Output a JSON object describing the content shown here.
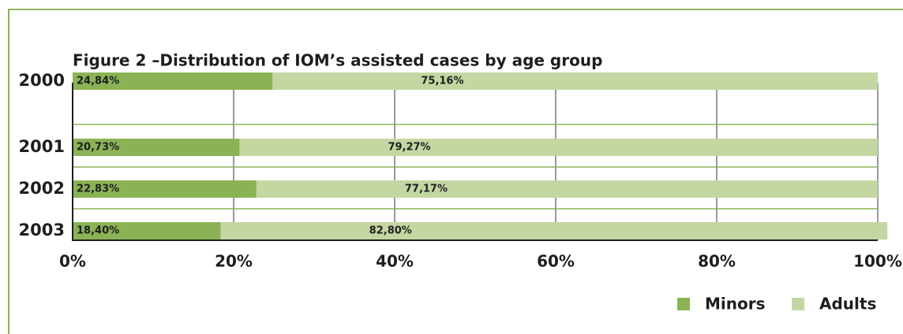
{
  "chart_data": {
    "type": "stacked_hbar",
    "title": "Figure 2 –Distribution of IOM’s assisted cases by age group",
    "categories": [
      "2000",
      "2001",
      "2002",
      "2003"
    ],
    "series": [
      {
        "name": "Minors",
        "color": "#8bb356",
        "values": [
          24.84,
          20.73,
          22.83,
          18.4
        ],
        "value_labels": [
          "24,84%",
          "20,73%",
          "22,83%",
          "18,40%"
        ]
      },
      {
        "name": "Adults",
        "color": "#c4d7a2",
        "values": [
          75.16,
          79.27,
          77.17,
          82.8
        ],
        "value_labels": [
          "75,16%",
          "79,27%",
          "77,17%",
          "82,80%"
        ]
      }
    ],
    "xlim": [
      0,
      100
    ],
    "xticks": [
      {
        "value": 0,
        "label": "0%"
      },
      {
        "value": 20,
        "label": "20%"
      },
      {
        "value": 40,
        "label": "40%"
      },
      {
        "value": 60,
        "label": "60%"
      },
      {
        "value": 80,
        "label": "80%"
      },
      {
        "value": 100,
        "label": "100%"
      }
    ],
    "grid": true,
    "legend": "bottom-right"
  }
}
